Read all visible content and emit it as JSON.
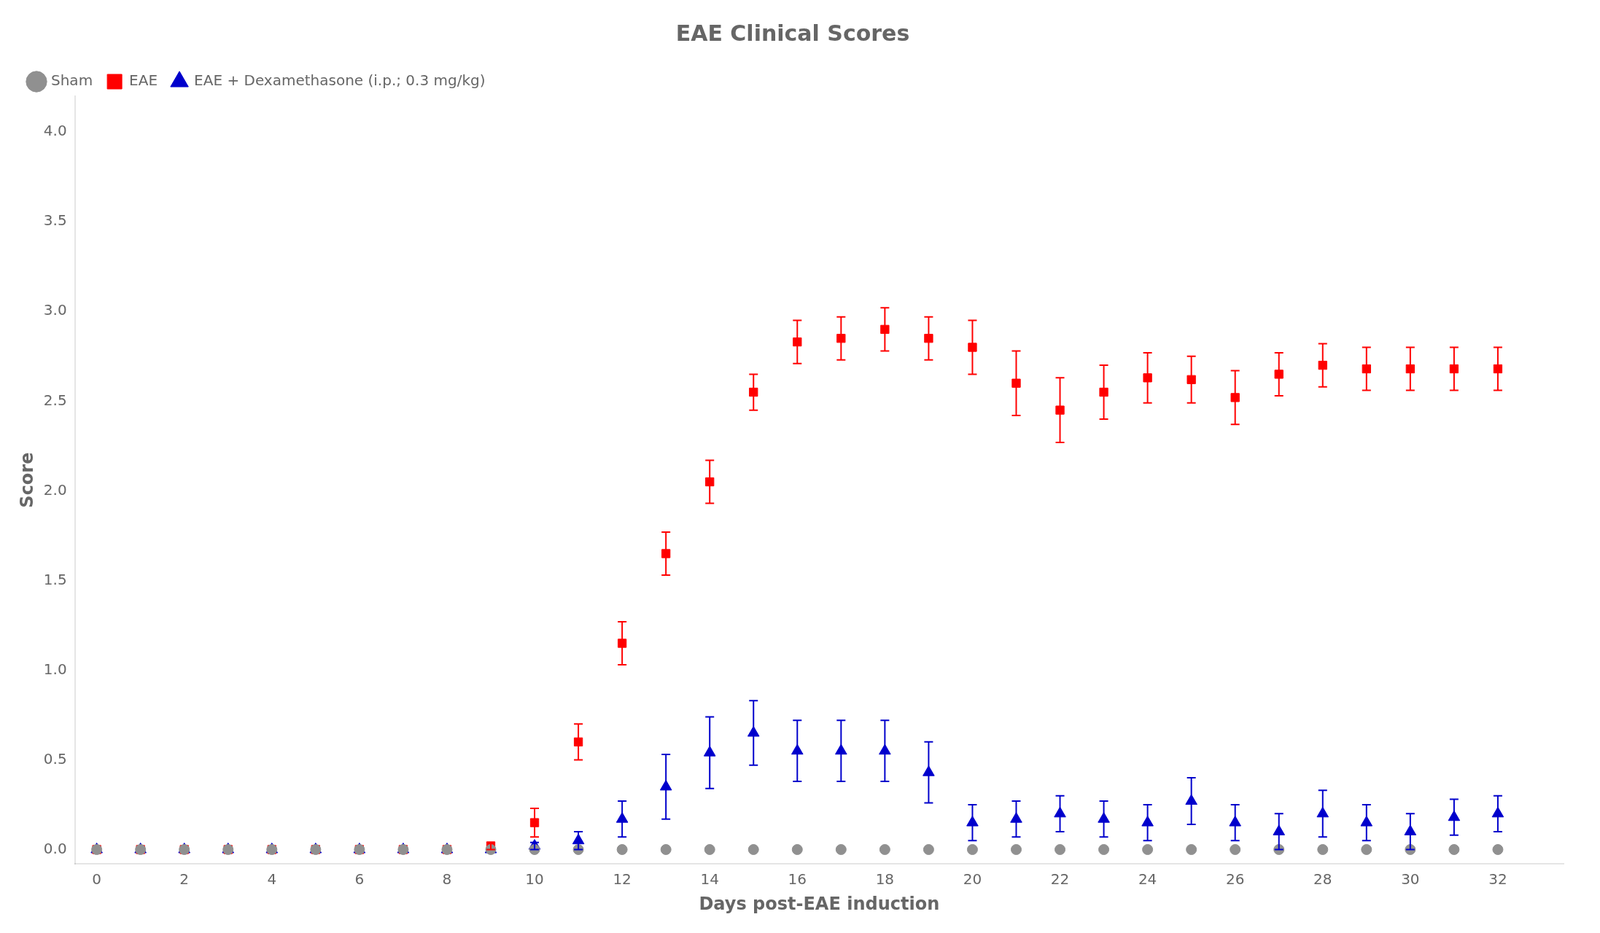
{
  "chart_data": {
    "type": "scatter",
    "title": "EAE Clinical Scores",
    "xlabel": "Days post-EAE induction",
    "ylabel": "Score",
    "x": [
      0,
      1,
      2,
      3,
      4,
      5,
      6,
      7,
      8,
      9,
      10,
      11,
      12,
      13,
      14,
      15,
      16,
      17,
      18,
      19,
      20,
      21,
      22,
      23,
      24,
      25,
      26,
      27,
      28,
      29,
      30,
      31,
      32
    ],
    "series": [
      {
        "name": "Sham",
        "color": "#909090",
        "marker": "circle",
        "values": [
          0,
          0,
          0,
          0,
          0,
          0,
          0,
          0,
          0,
          0,
          0,
          0,
          0,
          0,
          0,
          0,
          0,
          0,
          0,
          0,
          0,
          0,
          0,
          0,
          0,
          0,
          0,
          0,
          0,
          0,
          0,
          0,
          0
        ],
        "errors": [
          0,
          0,
          0,
          0,
          0,
          0,
          0,
          0,
          0,
          0,
          0,
          0,
          0,
          0,
          0,
          0,
          0,
          0,
          0,
          0,
          0,
          0,
          0,
          0,
          0,
          0,
          0,
          0,
          0,
          0,
          0,
          0,
          0
        ]
      },
      {
        "name": "EAE",
        "color": "#FF0000",
        "marker": "square",
        "values": [
          0,
          0,
          0,
          0,
          0,
          0,
          0,
          0,
          0,
          0.02,
          0.15,
          0.6,
          1.15,
          1.65,
          2.05,
          2.55,
          2.83,
          2.85,
          2.9,
          2.85,
          2.8,
          2.6,
          2.45,
          2.55,
          2.63,
          2.62,
          2.52,
          2.65,
          2.7,
          2.68,
          2.68,
          2.68,
          2.68
        ],
        "errors": [
          0,
          0,
          0,
          0,
          0,
          0,
          0,
          0,
          0,
          0.02,
          0.08,
          0.1,
          0.12,
          0.12,
          0.12,
          0.1,
          0.12,
          0.12,
          0.12,
          0.12,
          0.15,
          0.18,
          0.18,
          0.15,
          0.14,
          0.13,
          0.15,
          0.12,
          0.12,
          0.12,
          0.12,
          0.12,
          0.12
        ]
      },
      {
        "name": "EAE + Dexamethasone (i.p.; 0.3 mg/kg)",
        "color": "#0000CC",
        "marker": "triangle",
        "values": [
          0,
          0,
          0,
          0,
          0,
          0,
          0,
          0,
          0,
          0,
          0.02,
          0.05,
          0.17,
          0.35,
          0.54,
          0.65,
          0.55,
          0.55,
          0.55,
          0.43,
          0.15,
          0.17,
          0.2,
          0.17,
          0.15,
          0.27,
          0.15,
          0.1,
          0.2,
          0.15,
          0.1,
          0.18,
          0.2
        ],
        "errors": [
          0,
          0,
          0,
          0,
          0,
          0,
          0,
          0,
          0,
          0,
          0.02,
          0.05,
          0.1,
          0.18,
          0.2,
          0.18,
          0.17,
          0.17,
          0.17,
          0.17,
          0.1,
          0.1,
          0.1,
          0.1,
          0.1,
          0.13,
          0.1,
          0.1,
          0.13,
          0.1,
          0.1,
          0.1,
          0.1
        ]
      }
    ],
    "xlim": [
      -0.5,
      33.5
    ],
    "ylim": [
      -0.08,
      4.2
    ],
    "xticks": [
      0,
      2,
      4,
      6,
      8,
      10,
      12,
      14,
      16,
      18,
      20,
      22,
      24,
      26,
      28,
      30,
      32
    ],
    "yticks": [
      {
        "value": 0.0,
        "label": "0.0"
      },
      0.5,
      {
        "value": 1.0,
        "label": "1.0"
      },
      1.5,
      {
        "value": 2.0,
        "label": "2.0"
      },
      2.5,
      {
        "value": 3.0,
        "label": "3.0"
      },
      3.5,
      {
        "value": 4.0,
        "label": "4.0"
      }
    ],
    "grid": false,
    "legend": "upper left"
  }
}
